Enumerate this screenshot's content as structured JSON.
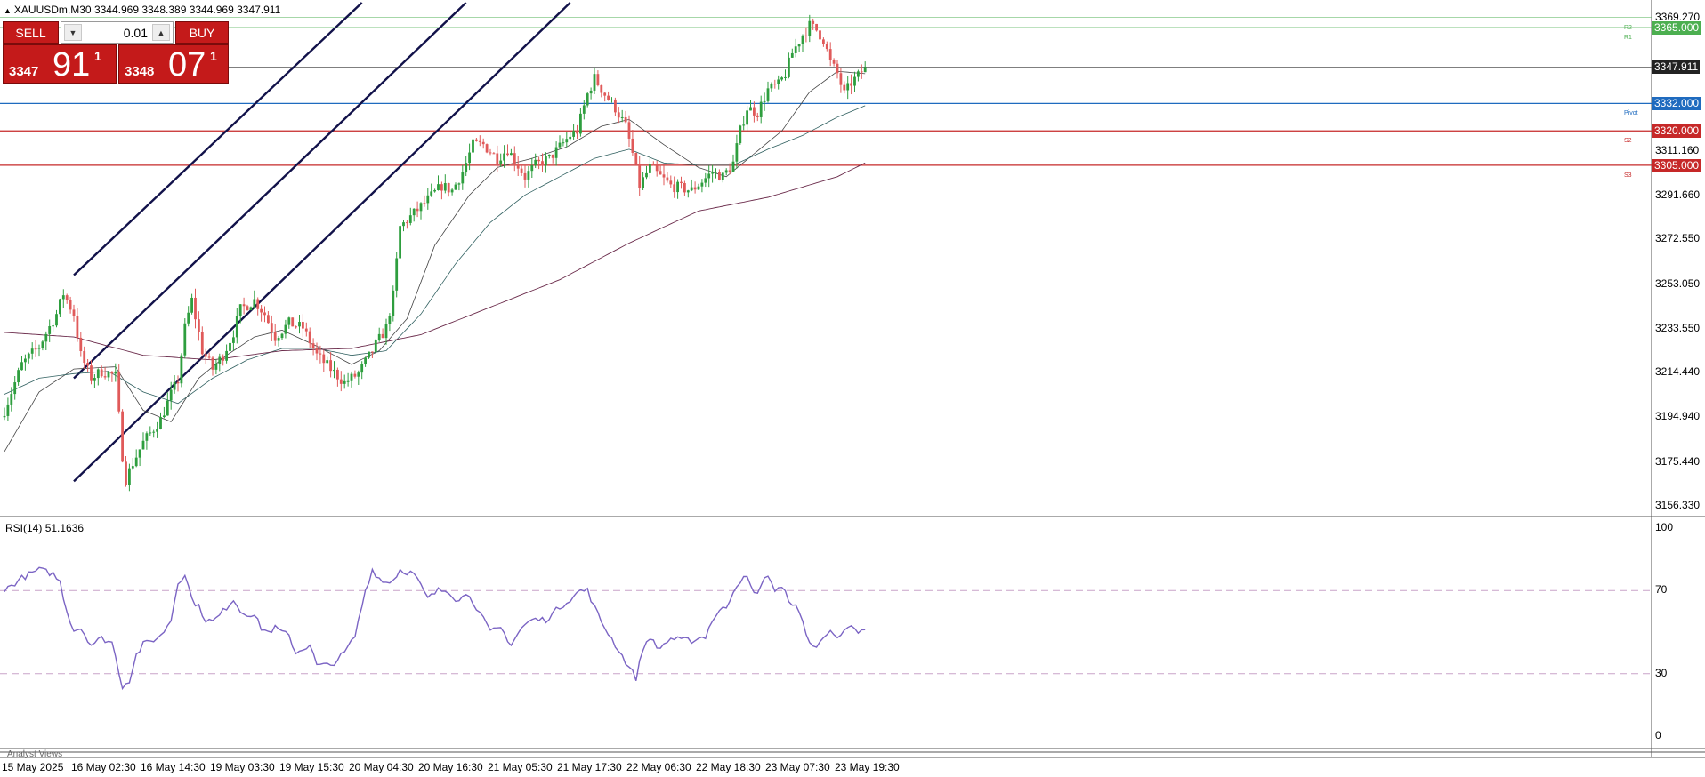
{
  "header": {
    "text": "XAUUSDm,M30  3344.969 3348.389 3344.969 3347.911"
  },
  "trade_panel": {
    "sell_label": "SELL",
    "buy_label": "BUY",
    "volume": "0.01",
    "bid": {
      "small": "3347",
      "big": "91",
      "sup": "1"
    },
    "ask": {
      "small": "3348",
      "big": "07",
      "sup": "1"
    },
    "spin_down": "▼",
    "spin_up": "▲"
  },
  "analyst_views_label": "Analyst Views",
  "colors": {
    "bull": "#2e9e3e",
    "bear": "#e05a5a",
    "rsi": "#7b64c4",
    "channel": "#12124a",
    "r1": "#4caf50",
    "pivot": "#1f6bbf",
    "support": "#c62828",
    "current": "#555555"
  },
  "levels": [
    {
      "name": "R2",
      "label": "R2",
      "price": 3369.5,
      "color": "#4caf50",
      "tag": null
    },
    {
      "name": "R1",
      "label": "R1",
      "price": 3365,
      "color": "#4caf50",
      "tag": "3365.000"
    },
    {
      "name": "Pivot",
      "label": "Pivot",
      "price": 3332,
      "color": "#1f6bbf",
      "tag": "3332.000"
    },
    {
      "name": "S2",
      "label": "S2",
      "price": 3320,
      "color": "#c62828",
      "tag": "3320.000"
    },
    {
      "name": "S3",
      "label": "S3",
      "price": 3305,
      "color": "#c62828",
      "tag": "3305.000"
    }
  ],
  "current_price_tag": "3347.911",
  "chart_data": {
    "type": "candlestick",
    "symbol": "XAUUSDm",
    "timeframe": "M30",
    "title": "XAUUSDm,M30",
    "y_ticks": [
      "3369.270",
      "3311.160",
      "3291.660",
      "3272.550",
      "3253.050",
      "3233.550",
      "3214.440",
      "3194.940",
      "3175.440",
      "3156.330"
    ],
    "ylim": [
      3152,
      3376
    ],
    "x_ticks": [
      "15 May 2025",
      "16 May 02:30",
      "16 May 14:30",
      "19 May 03:30",
      "19 May 15:30",
      "20 May 04:30",
      "20 May 16:30",
      "21 May 05:30",
      "21 May 17:30",
      "22 May 06:30",
      "22 May 18:30",
      "23 May 07:30",
      "23 May 19:30"
    ],
    "bars_per_tick": 20,
    "close_anchors": [
      [
        0,
        3198
      ],
      [
        5,
        3218
      ],
      [
        10,
        3226
      ],
      [
        15,
        3240
      ],
      [
        17,
        3249
      ],
      [
        20,
        3240
      ],
      [
        22,
        3222
      ],
      [
        25,
        3212
      ],
      [
        28,
        3215
      ],
      [
        32,
        3213
      ],
      [
        34,
        3178
      ],
      [
        35,
        3168
      ],
      [
        37,
        3175
      ],
      [
        40,
        3184
      ],
      [
        45,
        3194
      ],
      [
        48,
        3205
      ],
      [
        50,
        3211
      ],
      [
        52,
        3234
      ],
      [
        54,
        3246
      ],
      [
        57,
        3224
      ],
      [
        60,
        3216
      ],
      [
        63,
        3222
      ],
      [
        66,
        3232
      ],
      [
        68,
        3242
      ],
      [
        72,
        3246
      ],
      [
        75,
        3240
      ],
      [
        78,
        3230
      ],
      [
        82,
        3236
      ],
      [
        86,
        3234
      ],
      [
        90,
        3222
      ],
      [
        94,
        3216
      ],
      [
        98,
        3210
      ],
      [
        102,
        3214
      ],
      [
        106,
        3224
      ],
      [
        110,
        3234
      ],
      [
        112,
        3248
      ],
      [
        114,
        3278
      ],
      [
        118,
        3284
      ],
      [
        122,
        3290
      ],
      [
        126,
        3296
      ],
      [
        129,
        3294
      ],
      [
        132,
        3302
      ],
      [
        135,
        3314
      ],
      [
        138,
        3314
      ],
      [
        142,
        3308
      ],
      [
        145,
        3312
      ],
      [
        150,
        3300
      ],
      [
        153,
        3305
      ],
      [
        157,
        3308
      ],
      [
        160,
        3313
      ],
      [
        163,
        3318
      ],
      [
        165,
        3320
      ],
      [
        168,
        3336
      ],
      [
        170,
        3343
      ],
      [
        173,
        3336
      ],
      [
        176,
        3330
      ],
      [
        179,
        3322
      ],
      [
        181,
        3310
      ],
      [
        183,
        3296
      ],
      [
        186,
        3304
      ],
      [
        189,
        3300
      ],
      [
        192,
        3296
      ],
      [
        195,
        3295
      ],
      [
        198,
        3294
      ],
      [
        201,
        3298
      ],
      [
        204,
        3302
      ],
      [
        207,
        3300
      ],
      [
        210,
        3306
      ],
      [
        212,
        3320
      ],
      [
        214,
        3330
      ],
      [
        217,
        3328
      ],
      [
        220,
        3338
      ],
      [
        223,
        3340
      ],
      [
        225,
        3345
      ],
      [
        227,
        3354
      ],
      [
        230,
        3362
      ],
      [
        232,
        3366
      ],
      [
        234,
        3364
      ],
      [
        236,
        3360
      ],
      [
        238,
        3350
      ],
      [
        240,
        3345
      ],
      [
        242,
        3336
      ],
      [
        244,
        3341
      ],
      [
        246,
        3344
      ],
      [
        248,
        3347.9
      ]
    ],
    "series": [
      {
        "name": "MA-fast",
        "color": "#444444",
        "width": 0.8,
        "anchors": [
          [
            0,
            3180
          ],
          [
            10,
            3206
          ],
          [
            20,
            3216
          ],
          [
            32,
            3217
          ],
          [
            40,
            3198
          ],
          [
            48,
            3193
          ],
          [
            56,
            3212
          ],
          [
            64,
            3222
          ],
          [
            72,
            3230
          ],
          [
            80,
            3233
          ],
          [
            90,
            3226
          ],
          [
            100,
            3218
          ],
          [
            108,
            3224
          ],
          [
            116,
            3238
          ],
          [
            124,
            3270
          ],
          [
            134,
            3292
          ],
          [
            142,
            3304
          ],
          [
            152,
            3308
          ],
          [
            162,
            3313
          ],
          [
            172,
            3322
          ],
          [
            180,
            3325
          ],
          [
            190,
            3314
          ],
          [
            200,
            3304
          ],
          [
            208,
            3300
          ],
          [
            216,
            3310
          ],
          [
            224,
            3320
          ],
          [
            232,
            3337
          ],
          [
            240,
            3346
          ],
          [
            248,
            3345
          ]
        ]
      },
      {
        "name": "MA-mid",
        "color": "#2f5f5f",
        "width": 0.8,
        "anchors": [
          [
            0,
            3205
          ],
          [
            10,
            3212
          ],
          [
            20,
            3214
          ],
          [
            30,
            3215
          ],
          [
            40,
            3206
          ],
          [
            50,
            3201
          ],
          [
            60,
            3212
          ],
          [
            70,
            3220
          ],
          [
            80,
            3225
          ],
          [
            90,
            3225
          ],
          [
            100,
            3222
          ],
          [
            110,
            3224
          ],
          [
            120,
            3240
          ],
          [
            130,
            3262
          ],
          [
            140,
            3280
          ],
          [
            150,
            3292
          ],
          [
            160,
            3300
          ],
          [
            170,
            3308
          ],
          [
            180,
            3312
          ],
          [
            190,
            3306
          ],
          [
            200,
            3305
          ],
          [
            210,
            3305
          ],
          [
            220,
            3312
          ],
          [
            230,
            3318
          ],
          [
            240,
            3326
          ],
          [
            248,
            3331
          ]
        ]
      },
      {
        "name": "MA-slow",
        "color": "#6a2a4a",
        "width": 0.9,
        "anchors": [
          [
            0,
            3232
          ],
          [
            20,
            3230
          ],
          [
            40,
            3222
          ],
          [
            60,
            3220
          ],
          [
            80,
            3224
          ],
          [
            100,
            3225
          ],
          [
            120,
            3231
          ],
          [
            140,
            3243
          ],
          [
            160,
            3255
          ],
          [
            180,
            3271
          ],
          [
            200,
            3285
          ],
          [
            220,
            3291
          ],
          [
            240,
            3300
          ],
          [
            248,
            3306
          ]
        ]
      }
    ],
    "rsi": {
      "name": "RSI(14)",
      "value": "51.1636",
      "levels": [
        70,
        30
      ],
      "ylim": [
        0,
        100
      ],
      "ticks": [
        "100",
        "70",
        "30",
        "0"
      ],
      "anchors": [
        [
          0,
          70
        ],
        [
          5,
          76
        ],
        [
          10,
          80
        ],
        [
          14,
          78
        ],
        [
          16,
          74
        ],
        [
          18,
          60
        ],
        [
          20,
          51
        ],
        [
          22,
          52
        ],
        [
          25,
          44
        ],
        [
          28,
          47
        ],
        [
          31,
          45
        ],
        [
          33,
          31
        ],
        [
          34,
          24
        ],
        [
          36,
          27
        ],
        [
          38,
          39
        ],
        [
          40,
          44
        ],
        [
          45,
          48
        ],
        [
          48,
          56
        ],
        [
          50,
          74
        ],
        [
          52,
          78
        ],
        [
          54,
          66
        ],
        [
          56,
          62
        ],
        [
          58,
          56
        ],
        [
          60,
          55
        ],
        [
          62,
          58
        ],
        [
          64,
          62
        ],
        [
          66,
          66
        ],
        [
          68,
          60
        ],
        [
          72,
          58
        ],
        [
          74,
          52
        ],
        [
          76,
          50
        ],
        [
          78,
          52
        ],
        [
          82,
          48
        ],
        [
          84,
          40
        ],
        [
          88,
          44
        ],
        [
          90,
          34
        ],
        [
          94,
          34
        ],
        [
          98,
          40
        ],
        [
          101,
          48
        ],
        [
          104,
          70
        ],
        [
          106,
          80
        ],
        [
          109,
          74
        ],
        [
          112,
          75
        ],
        [
          114,
          80
        ],
        [
          118,
          78
        ],
        [
          120,
          72
        ],
        [
          122,
          66
        ],
        [
          125,
          70
        ],
        [
          128,
          70
        ],
        [
          130,
          66
        ],
        [
          134,
          68
        ],
        [
          136,
          62
        ],
        [
          138,
          56
        ],
        [
          140,
          50
        ],
        [
          143,
          52
        ],
        [
          146,
          44
        ],
        [
          149,
          52
        ],
        [
          152,
          56
        ],
        [
          156,
          56
        ],
        [
          160,
          62
        ],
        [
          163,
          66
        ],
        [
          166,
          70
        ],
        [
          168,
          70
        ],
        [
          170,
          62
        ],
        [
          172,
          55
        ],
        [
          176,
          44
        ],
        [
          180,
          33
        ],
        [
          182,
          28
        ],
        [
          184,
          42
        ],
        [
          186,
          48
        ],
        [
          188,
          42
        ],
        [
          190,
          44
        ],
        [
          192,
          47
        ],
        [
          195,
          46
        ],
        [
          198,
          46
        ],
        [
          202,
          48
        ],
        [
          204,
          56
        ],
        [
          206,
          60
        ],
        [
          208,
          62
        ],
        [
          210,
          70
        ],
        [
          212,
          75
        ],
        [
          214,
          76
        ],
        [
          216,
          68
        ],
        [
          218,
          72
        ],
        [
          220,
          78
        ],
        [
          222,
          70
        ],
        [
          224,
          71
        ],
        [
          226,
          66
        ],
        [
          228,
          62
        ],
        [
          230,
          55
        ],
        [
          232,
          45
        ],
        [
          234,
          42
        ],
        [
          236,
          48
        ],
        [
          238,
          52
        ],
        [
          240,
          46
        ],
        [
          242,
          50
        ],
        [
          244,
          52
        ],
        [
          246,
          50
        ],
        [
          248,
          51.16
        ]
      ]
    },
    "channels": [
      {
        "name": "channel-upper",
        "p1": [
          20,
          3257
        ],
        "p2": [
          103,
          3376
        ]
      },
      {
        "name": "channel-middle",
        "p1": [
          20,
          3212
        ],
        "p2": [
          133,
          3376
        ]
      },
      {
        "name": "channel-lower",
        "p1": [
          20,
          3167
        ],
        "p2": [
          163,
          3376
        ]
      }
    ]
  }
}
